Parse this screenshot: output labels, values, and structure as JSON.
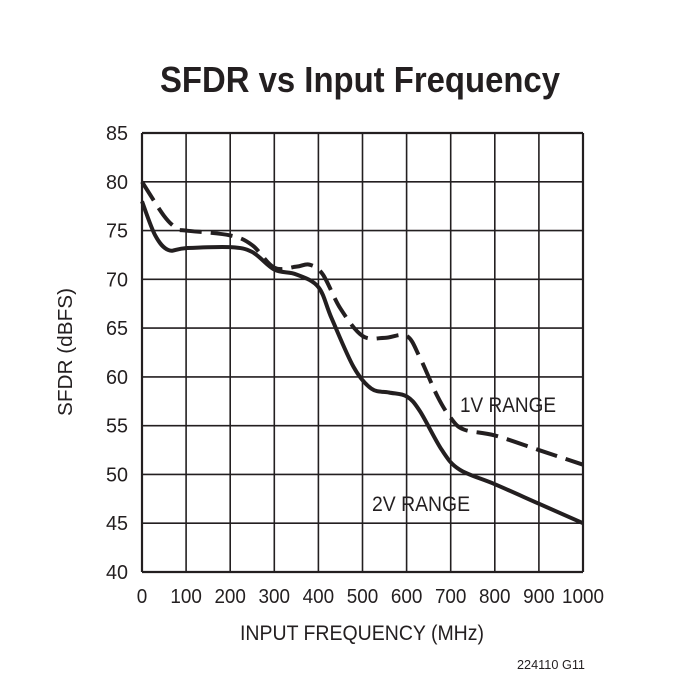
{
  "chart_data": {
    "type": "line",
    "title": "SFDR vs Input Frequency",
    "xlabel": "INPUT FREQUENCY (MHz)",
    "ylabel": "SFDR (dBFS)",
    "xlim": [
      0,
      1000
    ],
    "ylim": [
      40,
      85
    ],
    "xticks": [
      0,
      100,
      200,
      300,
      400,
      500,
      600,
      700,
      800,
      900,
      1000
    ],
    "yticks": [
      40,
      45,
      50,
      55,
      60,
      65,
      70,
      75,
      80,
      85
    ],
    "grid": true,
    "footnote": "224110 G11",
    "series": [
      {
        "name": "1V RANGE",
        "style": "dashed",
        "color": "#231f20",
        "x": [
          0,
          50,
          80,
          100,
          200,
          250,
          300,
          350,
          380,
          410,
          450,
          500,
          550,
          600,
          630,
          670,
          700,
          730,
          800,
          900,
          1000
        ],
        "y": [
          80,
          76.5,
          75.2,
          75,
          74.5,
          73.5,
          71.2,
          71.3,
          71.5,
          70.5,
          67,
          64.2,
          64,
          64.2,
          62,
          58,
          55.8,
          54.6,
          54,
          52.5,
          51
        ]
      },
      {
        "name": "2V RANGE",
        "style": "solid",
        "color": "#231f20",
        "x": [
          0,
          30,
          60,
          100,
          200,
          250,
          300,
          350,
          400,
          430,
          480,
          520,
          560,
          600,
          630,
          680,
          720,
          800,
          900,
          1000
        ],
        "y": [
          78,
          74.5,
          73,
          73.2,
          73.3,
          72.8,
          71,
          70.5,
          69.2,
          66,
          61,
          58.8,
          58.4,
          58,
          56.5,
          52.5,
          50.5,
          49,
          47,
          45
        ]
      }
    ]
  }
}
